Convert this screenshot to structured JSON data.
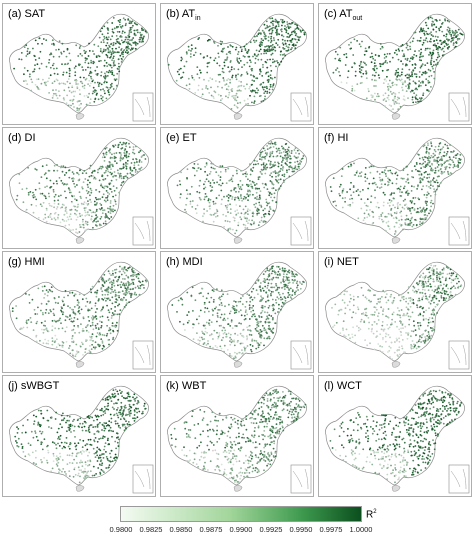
{
  "panels": [
    {
      "id": "a",
      "label": "(a)  SAT",
      "sub": "",
      "mode": "dark"
    },
    {
      "id": "b",
      "label": "(b)  AT",
      "sub": "in",
      "mode": "dark"
    },
    {
      "id": "c",
      "label": "(c)  AT",
      "sub": "out",
      "mode": "dark"
    },
    {
      "id": "d",
      "label": "(d)  DI",
      "sub": "",
      "mode": "mid"
    },
    {
      "id": "e",
      "label": "(e)  ET",
      "sub": "",
      "mode": "mid"
    },
    {
      "id": "f",
      "label": "(f)  HI",
      "sub": "",
      "mode": "mid"
    },
    {
      "id": "g",
      "label": "(g)  HMI",
      "sub": "",
      "mode": "mid"
    },
    {
      "id": "h",
      "label": "(h)  MDI",
      "sub": "",
      "mode": "mid"
    },
    {
      "id": "i",
      "label": "(i)  NET",
      "sub": "",
      "mode": "light"
    },
    {
      "id": "j",
      "label": "(j)  sWBGT",
      "sub": "",
      "mode": "dark"
    },
    {
      "id": "k",
      "label": "(k)  WBT",
      "sub": "",
      "mode": "mid"
    },
    {
      "id": "l",
      "label": "(l)  WCT",
      "sub": "",
      "mode": "dark"
    }
  ],
  "legend": {
    "title": "R",
    "title_sup": "2",
    "ticks": [
      "0.9800",
      "0.9825",
      "0.9850",
      "0.9875",
      "0.9900",
      "0.9925",
      "0.9950",
      "0.9975",
      "1.0000"
    ],
    "min": 0.98,
    "max": 1.0,
    "color_low": "#f4fbf2",
    "color_high": "#0b4f1e"
  }
}
